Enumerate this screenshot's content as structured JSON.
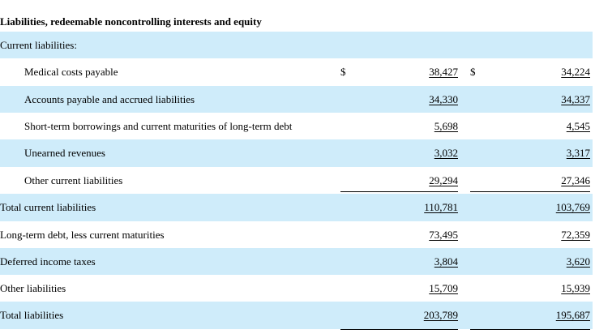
{
  "heading": "Liabilities, redeemable noncontrolling interests and equity",
  "currency_symbol": "$",
  "rows": [
    {
      "label": "Current liabilities:",
      "indent": false,
      "shade": true,
      "col1": "",
      "col2": "",
      "dollar": false
    },
    {
      "label": "Medical costs payable",
      "indent": true,
      "shade": false,
      "col1": "38,427",
      "col2": "34,224",
      "dollar": true
    },
    {
      "label": "Accounts payable and accrued liabilities",
      "indent": true,
      "shade": true,
      "col1": "34,330",
      "col2": "34,337",
      "dollar": false
    },
    {
      "label": "Short-term borrowings and current maturities of long-term debt",
      "indent": true,
      "shade": false,
      "col1": "5,698",
      "col2": "4,545",
      "dollar": false
    },
    {
      "label": "Unearned revenues",
      "indent": true,
      "shade": true,
      "col1": "3,032",
      "col2": "3,317",
      "dollar": false
    },
    {
      "label": "Other current liabilities",
      "indent": true,
      "shade": false,
      "col1": "29,294",
      "col2": "27,346",
      "dollar": false
    },
    {
      "label": "Total current liabilities",
      "indent": false,
      "shade": true,
      "col1": "110,781",
      "col2": "103,769",
      "dollar": false
    },
    {
      "label": "Long-term debt, less current maturities",
      "indent": false,
      "shade": false,
      "col1": "73,495",
      "col2": "72,359",
      "dollar": false
    },
    {
      "label": "Deferred income taxes",
      "indent": false,
      "shade": true,
      "col1": "3,804",
      "col2": "3,620",
      "dollar": false
    },
    {
      "label": "Other liabilities",
      "indent": false,
      "shade": false,
      "col1": "15,709",
      "col2": "15,939",
      "dollar": false
    },
    {
      "label": "Total liabilities",
      "indent": false,
      "shade": true,
      "col1": "203,789",
      "col2": "195,687",
      "dollar": false
    }
  ]
}
